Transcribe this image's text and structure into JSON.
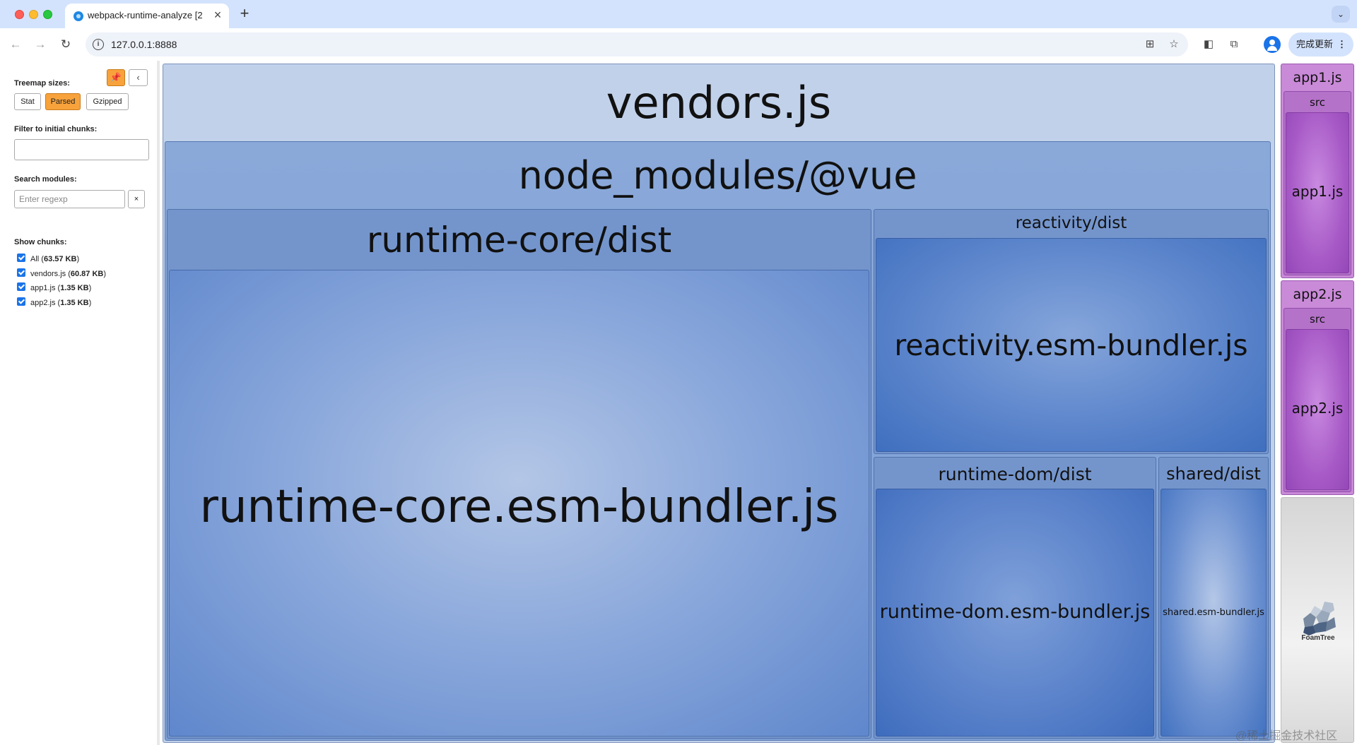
{
  "browser": {
    "tab_title": "webpack-runtime-analyze [2",
    "tab_close": "×",
    "new_tab": "+",
    "tab_menu": "⌄",
    "url": "127.0.0.1:8888",
    "update_label": "完成更新",
    "update_menu": "⋮",
    "nav": {
      "back": "←",
      "forward": "→",
      "reload": "↻"
    },
    "omnibox_icons": {
      "translate": "⊞",
      "bookmark": "☆"
    },
    "toolbar_icons": {
      "sidebar": "◧",
      "extensions": "⧉"
    },
    "info": "i"
  },
  "sidebar": {
    "pin_icon": "📌",
    "collapse_icon": "‹",
    "treemap_sizes_label": "Treemap sizes:",
    "size_buttons": [
      "Stat",
      "Parsed",
      "Gzipped"
    ],
    "active_size": "Parsed",
    "filter_label": "Filter to initial chunks:",
    "filter_value": "",
    "search_label": "Search modules:",
    "search_placeholder": "Enter regexp",
    "clear_label": "×",
    "show_chunks_label": "Show chunks:",
    "chunks": [
      {
        "name": "All",
        "size": "63.57 KB",
        "checked": true
      },
      {
        "name": "vendors.js",
        "size": "60.87 KB",
        "checked": true
      },
      {
        "name": "app1.js",
        "size": "1.35 KB",
        "checked": true
      },
      {
        "name": "app2.js",
        "size": "1.35 KB",
        "checked": true
      }
    ]
  },
  "treemap": {
    "vendors": "vendors.js",
    "node_modules_vue": "node_modules/@vue",
    "runtime_core_dist": "runtime-core/dist",
    "runtime_core_file": "runtime-core.esm-bundler.js",
    "reactivity_dist": "reactivity/dist",
    "reactivity_file": "reactivity.esm-bundler.js",
    "runtime_dom_dist": "runtime-dom/dist",
    "runtime_dom_file": "runtime-dom.esm-bundler.js",
    "shared_dist": "shared/dist",
    "shared_file": "shared.esm-bundler.js",
    "app1": "app1.js",
    "app1_src": "src",
    "app1_file": "app1.js",
    "app2": "app2.js",
    "app2_src": "src",
    "app2_file": "app2.js",
    "foamtree": "FoamTree"
  },
  "colors": {
    "vendor_chunk": "#c1d1ea",
    "module_blue": "#5d86cc",
    "app_purple": "#a85bc7",
    "active_button": "#f8a23c"
  },
  "watermark": "@稀土掘金技术社区"
}
